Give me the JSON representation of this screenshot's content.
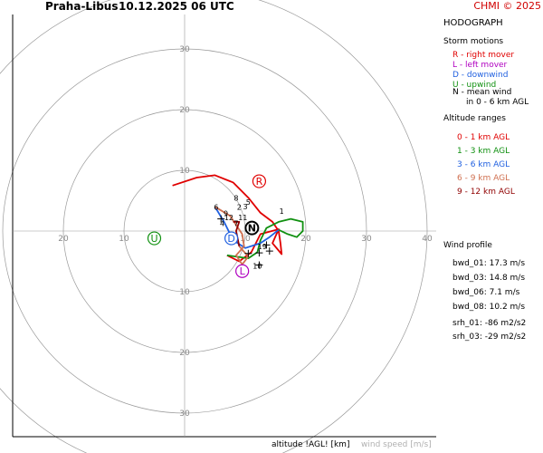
{
  "header": {
    "station": "Praha-Libus",
    "datetime": "10.12.2025 06 UTC",
    "copyright": "CHMI © 2025"
  },
  "legend": {
    "title": "HODOGRAPH",
    "storm_motions_title": "Storm motions",
    "storm_motions": [
      {
        "text": "R - right mover",
        "color": "#e00000"
      },
      {
        "text": "L - left mover",
        "color": "#b000c0"
      },
      {
        "text": "D - downwind",
        "color": "#2060e0"
      },
      {
        "text": "U - upwind",
        "color": "#109010"
      },
      {
        "text": "N - mean wind",
        "color": "#000000"
      },
      {
        "text": "in 0 - 6 km AGL",
        "color": "#000000"
      }
    ],
    "altitude_title": "Altitude ranges",
    "altitude_ranges": [
      {
        "text": "0 - 1 km AGL",
        "color": "#e00000"
      },
      {
        "text": "1 - 3 km AGL",
        "color": "#109010"
      },
      {
        "text": "3 - 6 km AGL",
        "color": "#2060e0"
      },
      {
        "text": "6 - 9 km AGL",
        "color": "#d07050"
      },
      {
        "text": "9 - 12 km AGL",
        "color": "#900000"
      }
    ],
    "wind_profile_title": "Wind profile",
    "wind_profile": [
      "bwd_01: 17.3 m/s",
      "bwd_03: 14.8 m/s",
      "bwd_06: 7.1 m/s",
      "bwd_08: 10.2 m/s",
      "srh_01: -86 m2/s2",
      "srh_03: -29 m2/s2"
    ]
  },
  "axis_labels": {
    "altitude": "altitude !AGL! [km]",
    "wind_speed": "wind speed [m/s]"
  },
  "chart_data": {
    "type": "line",
    "rings": [
      10,
      20,
      30,
      40
    ],
    "ring_labels_x_right": [
      "10",
      "20",
      "30",
      "40"
    ],
    "ring_labels_x_left": [
      "10",
      "20"
    ],
    "ring_labels_y_up": [
      "10",
      "20",
      "30"
    ],
    "ring_labels_y_down": [
      "10",
      "20",
      "30"
    ],
    "segments": [
      {
        "range": "0-1",
        "color": "#e00000",
        "points": [
          [
            -2,
            7.5
          ],
          [
            2,
            8.8
          ],
          [
            5,
            9.2
          ],
          [
            8,
            8
          ],
          [
            10.5,
            5.5
          ],
          [
            12.5,
            3
          ],
          [
            14.5,
            1.5
          ],
          [
            15.5,
            0
          ],
          [
            15.8,
            -2
          ],
          [
            16,
            -3.8
          ],
          [
            14.5,
            -2
          ],
          [
            15.5,
            0.3
          ],
          [
            12.5,
            -0.5
          ],
          [
            11,
            -3.5
          ],
          [
            9,
            -5
          ],
          [
            7,
            -4
          ]
        ]
      },
      {
        "range": "1-3",
        "color": "#109010",
        "points": [
          [
            7,
            -4
          ],
          [
            10.5,
            -4.5
          ],
          [
            12,
            -3.5
          ],
          [
            12.5,
            -1.5
          ],
          [
            13.5,
            0.5
          ],
          [
            15.5,
            1.5
          ],
          [
            17.5,
            2
          ],
          [
            19.5,
            1.5
          ],
          [
            19.5,
            0
          ],
          [
            18.5,
            -1
          ],
          [
            17,
            -0.5
          ],
          [
            15.5,
            0.2
          ]
        ]
      },
      {
        "range": "3-6",
        "color": "#2060e0",
        "points": [
          [
            15.5,
            0.2
          ],
          [
            14,
            -1
          ],
          [
            12.5,
            -2
          ],
          [
            10,
            -2.8
          ],
          [
            8,
            -1.5
          ],
          [
            6.5,
            1.5
          ],
          [
            5,
            4
          ]
        ]
      },
      {
        "range": "6-9",
        "color": "#d07050",
        "points": [
          [
            5,
            4
          ],
          [
            7.5,
            2.5
          ],
          [
            9.5,
            -0.5
          ],
          [
            9.8,
            -2.5
          ],
          [
            8.5,
            -4
          ],
          [
            9.5,
            -5.5
          ],
          [
            10.5,
            -4.2
          ],
          [
            9,
            -2.5
          ]
        ]
      },
      {
        "range": "9-12",
        "color": "#900000",
        "points": [
          [
            9,
            -2.5
          ],
          [
            8.8,
            -1.5
          ],
          [
            8.5,
            0
          ],
          [
            9,
            1.5
          ],
          [
            8,
            1.5
          ]
        ]
      }
    ],
    "altitude_labels": [
      {
        "text": "1",
        "x": 16,
        "y": 2.8
      },
      {
        "text": "2",
        "x": 9,
        "y": 3.5
      },
      {
        "text": "3",
        "x": 10,
        "y": 3.6
      },
      {
        "text": "4",
        "x": 6.2,
        "y": 0.8
      },
      {
        "text": "5",
        "x": 10.5,
        "y": 4.3
      },
      {
        "text": "6",
        "x": 5.2,
        "y": 3.5
      },
      {
        "text": "7",
        "x": 8.5,
        "y": 0.8
      },
      {
        "text": "8",
        "x": 8.5,
        "y": 5
      },
      {
        "text": "9",
        "x": 6.8,
        "y": 2.5
      },
      {
        "text": "10",
        "x": 12,
        "y": -6.2
      },
      {
        "text": "11",
        "x": 9.6,
        "y": 1.8
      },
      {
        "text": "12",
        "x": 7.3,
        "y": 1.8
      },
      {
        "text": "19",
        "x": 12.8,
        "y": -3
      }
    ],
    "storm_motions": [
      {
        "label": "R",
        "x": 12.3,
        "y": 8.2,
        "color": "#e00000"
      },
      {
        "label": "L",
        "x": 9.5,
        "y": -6.6,
        "color": "#b000c0"
      },
      {
        "label": "D",
        "x": 7.7,
        "y": -1.2,
        "color": "#2060e0"
      },
      {
        "label": "U",
        "x": -5,
        "y": -1.2,
        "color": "#109010"
      },
      {
        "label": "N",
        "x": 11.1,
        "y": 0.5,
        "color": "#000000"
      }
    ],
    "crosses": [
      [
        6,
        2
      ],
      [
        14,
        -3.3
      ],
      [
        13.5,
        -2.3
      ],
      [
        12.3,
        -5.6
      ],
      [
        10.5,
        -3.7
      ],
      [
        12.3,
        -3.6
      ]
    ]
  }
}
